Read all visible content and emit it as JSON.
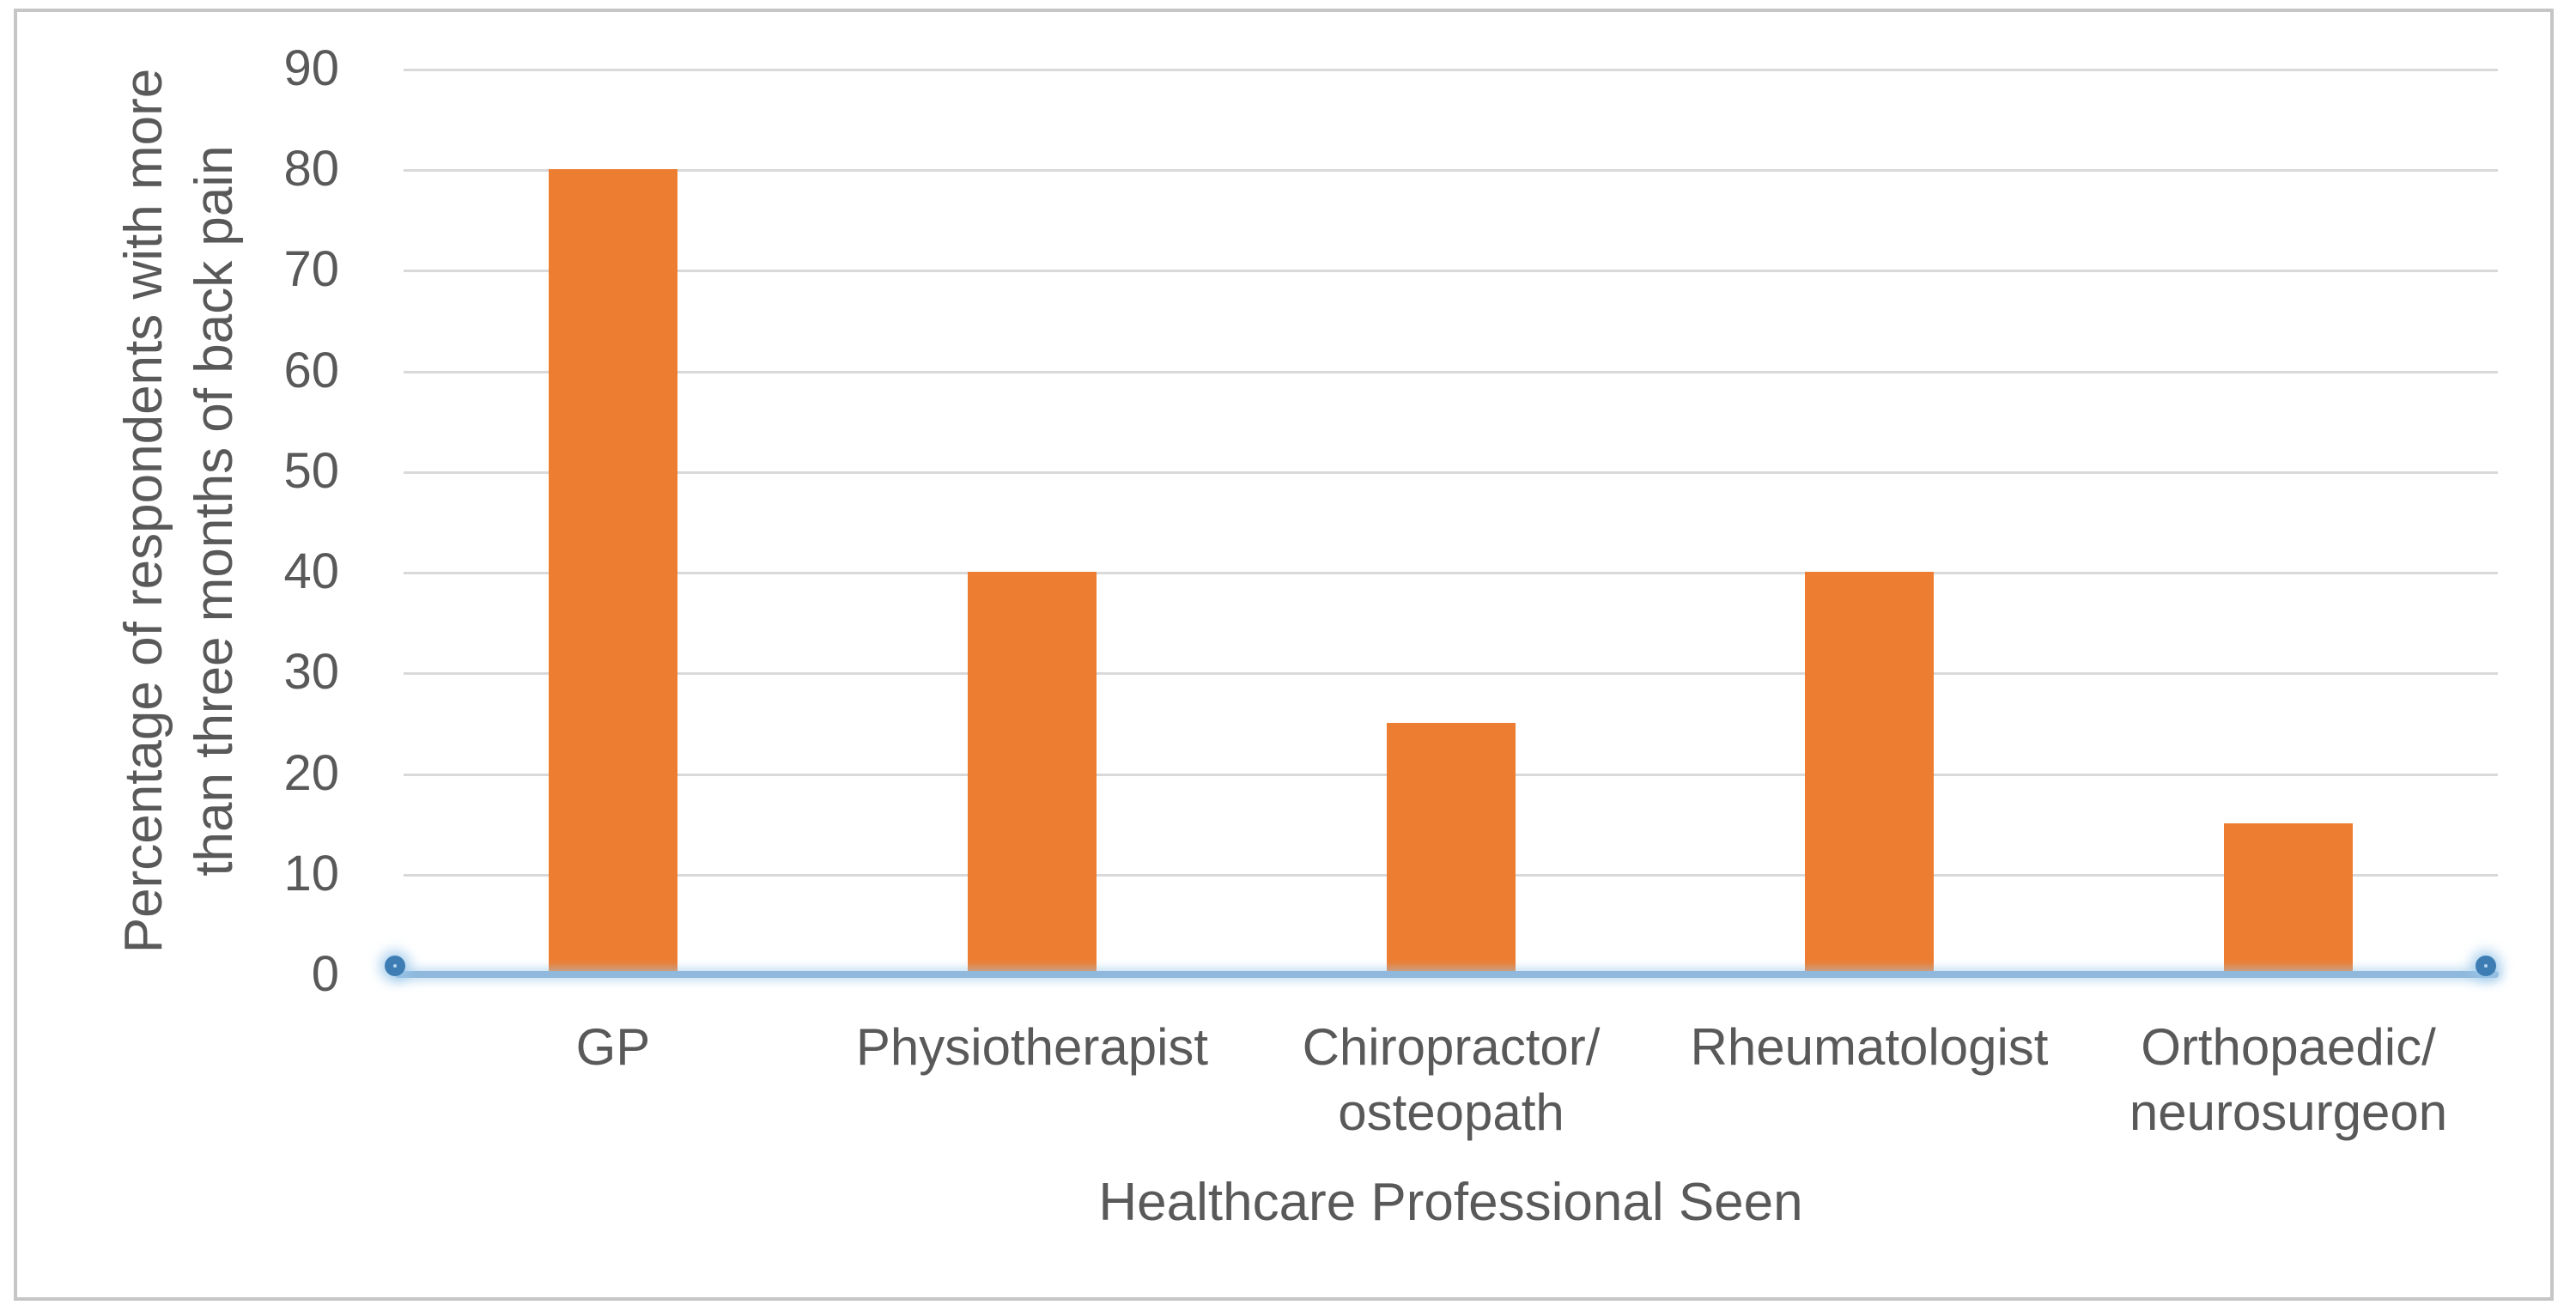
{
  "frame": {
    "background": "#FFFFFF",
    "border_color": "#C6C6C6"
  },
  "chart_data": {
    "type": "bar",
    "title": "",
    "categories": [
      "GP",
      "Physiotherapist",
      "Chiropractor/\nosteopath",
      "Rheumatologist",
      "Orthopaedic/\nneurosurgeon"
    ],
    "values": [
      80,
      40,
      25,
      40,
      15
    ],
    "xlabel": "Healthcare Professional Seen",
    "ylabel": "Percentage of respondents with more than three months of back pain",
    "ylabel_line1": "Percentage of respondents with more",
    "ylabel_line2": "than three months of back pain",
    "ylim": [
      0,
      90
    ],
    "yticks": [
      0,
      10,
      20,
      30,
      40,
      50,
      60,
      70,
      80,
      90
    ],
    "grid": true,
    "legend_position": "none",
    "colors": {
      "bar": "#ED7D31",
      "axis_line": "#8FB8DC",
      "handle_ring": "#3D7DB4",
      "handle_fill": "#B5D5EF",
      "gridline": "#D9D9D9",
      "text": "#595959",
      "frame_border": "#C6C6C6",
      "background": "#FFFFFF"
    }
  }
}
